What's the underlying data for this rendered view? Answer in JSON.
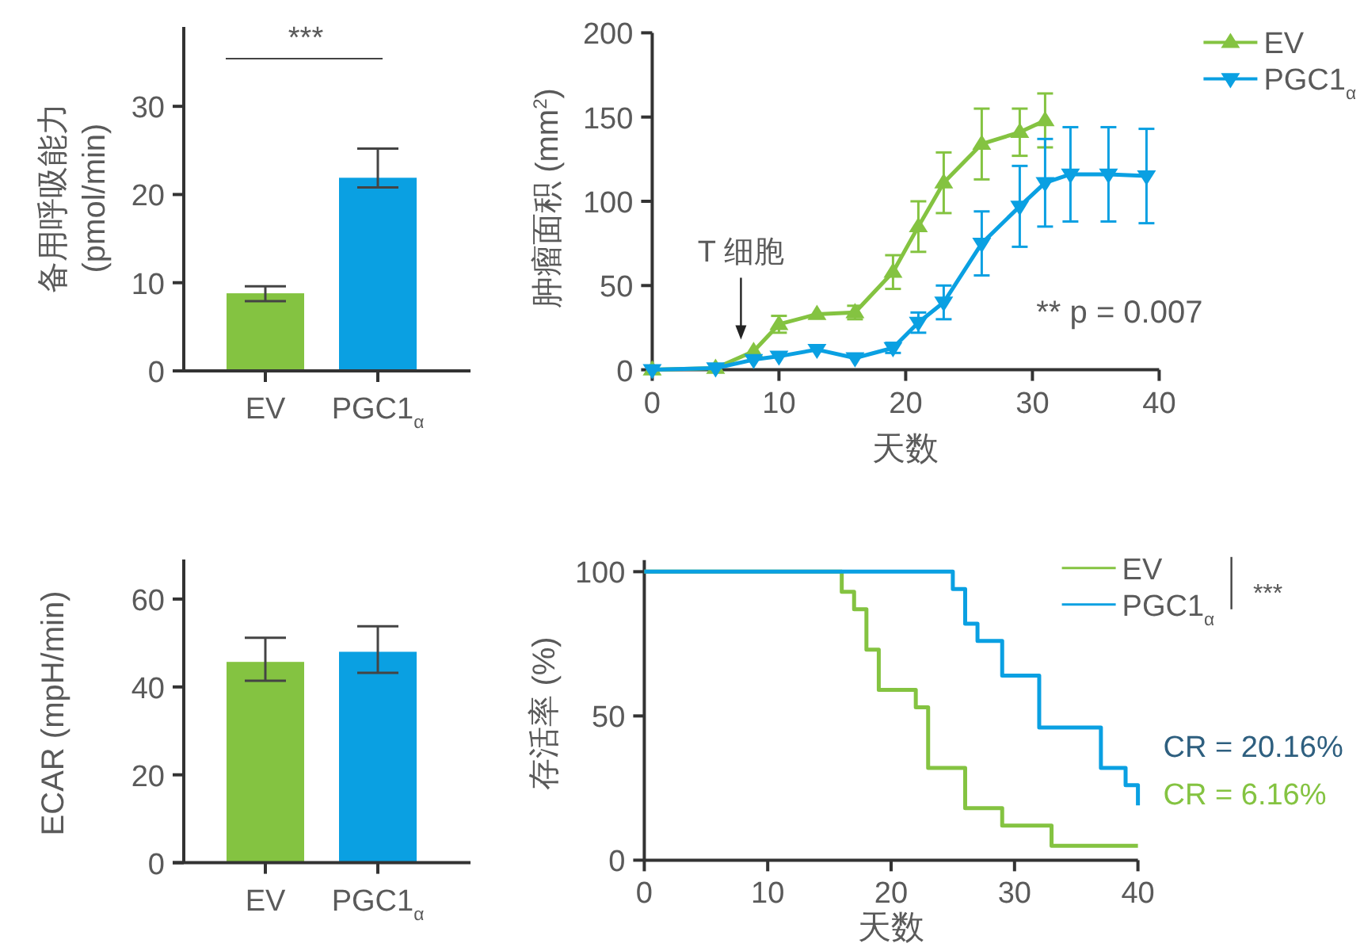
{
  "chart_data": [
    {
      "type": "bar",
      "categories": [
        "EV",
        "PGC1$_{α}$"
      ],
      "values": [
        8.8,
        21.9
      ],
      "colors": [
        "#84c341",
        "#0aa0e2"
      ],
      "errors": [
        [
          7.9,
          9.6
        ],
        [
          20.8,
          25.2
        ]
      ],
      "ylim": [
        0,
        39
      ],
      "yticks": [
        0,
        10,
        20,
        30
      ],
      "ylabel": "备用呼吸能力\n(pmol/min)",
      "annotations": [
        "***"
      ]
    },
    {
      "type": "line",
      "xlabel": "天数",
      "ylabel": "肿瘤面积 (mm$^{2}$)",
      "xlim": [
        0,
        40
      ],
      "xticks": [
        0,
        10,
        20,
        30,
        40
      ],
      "ylim": [
        0,
        200
      ],
      "yticks": [
        0,
        50,
        100,
        150,
        200
      ],
      "legend": "top right",
      "annotations": [
        "T 细胞",
        "** p = 0.007"
      ],
      "series": [
        {
          "name": "EV",
          "color": "#84c341",
          "marker": "triangle",
          "x": [
            0,
            5,
            8,
            10,
            13,
            16,
            19,
            21,
            23,
            26,
            29,
            31
          ],
          "values": [
            0,
            1,
            11,
            27,
            33,
            34,
            58,
            85,
            111,
            134,
            141,
            148
          ],
          "errors": [
            null,
            null,
            null,
            5,
            null,
            4,
            10,
            15,
            18,
            21,
            14,
            16
          ]
        },
        {
          "name": "PGC1$_{α}$",
          "color": "#0aa0e2",
          "marker": "triangle",
          "x": [
            0,
            5,
            8,
            10,
            13,
            16,
            19,
            21,
            23,
            26,
            29,
            31,
            33,
            36,
            39
          ],
          "values": [
            0,
            1,
            6,
            8,
            12,
            7,
            13,
            28,
            40,
            75,
            97,
            111,
            116,
            116,
            115
          ],
          "errors": [
            null,
            null,
            null,
            null,
            null,
            null,
            3,
            6,
            10,
            19,
            24,
            26,
            28,
            28,
            28
          ]
        }
      ]
    },
    {
      "type": "bar",
      "categories": [
        "EV",
        "PGC1$_{α}$"
      ],
      "values": [
        45.7,
        48.0
      ],
      "colors": [
        "#84c341",
        "#0aa0e2"
      ],
      "errors": [
        [
          41.4,
          51.2
        ],
        [
          43.2,
          53.8
        ]
      ],
      "ylim": [
        0,
        69
      ],
      "yticks": [
        0,
        20,
        40,
        60
      ],
      "ylabel": "ECAR (mpH/min)"
    },
    {
      "type": "step",
      "xlabel": "天数",
      "ylabel": "存活率 (%)",
      "xlim": [
        0,
        40
      ],
      "xticks": [
        0,
        10,
        20,
        30,
        40
      ],
      "ylim": [
        0,
        104
      ],
      "yticks": [
        0,
        50,
        100
      ],
      "legend": "top right",
      "annotations": [
        "***",
        "CR = 20.16%",
        "CR = 6.16%"
      ],
      "series": [
        {
          "name": "EV",
          "color": "#84c341",
          "x": [
            0,
            16,
            17,
            18,
            19,
            22,
            23,
            26,
            29,
            33,
            40
          ],
          "values": [
            100,
            93,
            87,
            73,
            59,
            53,
            32,
            18,
            12,
            5,
            5
          ]
        },
        {
          "name": "PGC1$_{α}$",
          "color": "#0aa0e2",
          "x": [
            0,
            25,
            26,
            27,
            29,
            32,
            37,
            39,
            40
          ],
          "values": [
            100,
            94,
            82,
            76,
            64,
            46,
            32,
            26,
            19
          ]
        }
      ]
    }
  ]
}
